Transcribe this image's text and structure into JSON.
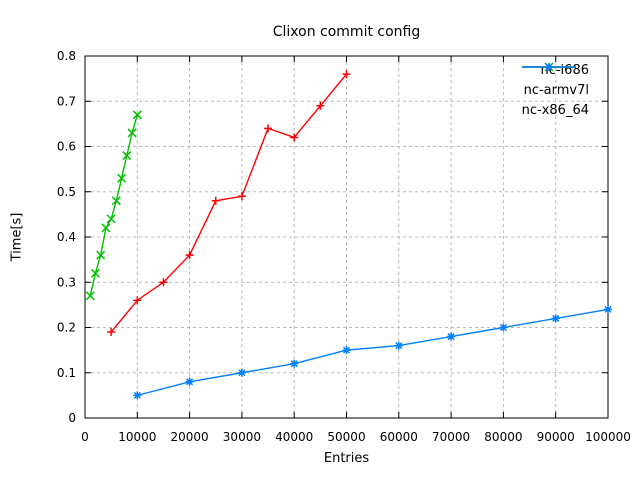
{
  "chart_data": {
    "type": "line",
    "title": "Clixon commit config",
    "xlabel": "Entries",
    "ylabel": "Time[s]",
    "xlim": [
      0,
      100000
    ],
    "ylim": [
      0,
      0.8
    ],
    "xticks": {
      "values": [
        0,
        10000,
        20000,
        30000,
        40000,
        50000,
        60000,
        70000,
        80000,
        90000,
        100000
      ],
      "labels": [
        "0",
        "10000",
        "20000",
        "30000",
        "40000",
        "50000",
        "60000",
        "70000",
        "80000",
        "90000",
        "100000"
      ]
    },
    "yticks": {
      "values": [
        0,
        0.1,
        0.2,
        0.3,
        0.4,
        0.5,
        0.6,
        0.7,
        0.8
      ],
      "labels": [
        "0",
        "0.1",
        "0.2",
        "0.3",
        "0.4",
        "0.5",
        "0.6",
        "0.7",
        "0.8"
      ]
    },
    "grid": true,
    "grid_style": "dashed",
    "legend_position": "top-right-inside",
    "axis_color": "#000000",
    "grid_color": "#b9b9b9",
    "background_color": "#ffffff",
    "series": [
      {
        "name": "nc-i686",
        "color": "#ff0000",
        "marker": "plus",
        "x": [
          5000,
          10000,
          15000,
          20000,
          25000,
          30000,
          35000,
          40000,
          45000,
          50000
        ],
        "y": [
          0.19,
          0.26,
          0.3,
          0.36,
          0.48,
          0.49,
          0.64,
          0.62,
          0.69,
          0.76
        ]
      },
      {
        "name": "nc-armv7l",
        "color": "#00c000",
        "marker": "cross",
        "x": [
          1000,
          2000,
          3000,
          4000,
          5000,
          6000,
          7000,
          8000,
          9000,
          10000
        ],
        "y": [
          0.27,
          0.32,
          0.36,
          0.42,
          0.44,
          0.48,
          0.53,
          0.58,
          0.63,
          0.67
        ]
      },
      {
        "name": "nc-x86_64",
        "color": "#0080ff",
        "marker": "star",
        "x": [
          10000,
          20000,
          30000,
          40000,
          50000,
          60000,
          70000,
          80000,
          90000,
          100000
        ],
        "y": [
          0.05,
          0.08,
          0.1,
          0.12,
          0.15,
          0.16,
          0.18,
          0.2,
          0.22,
          0.24
        ]
      }
    ]
  }
}
